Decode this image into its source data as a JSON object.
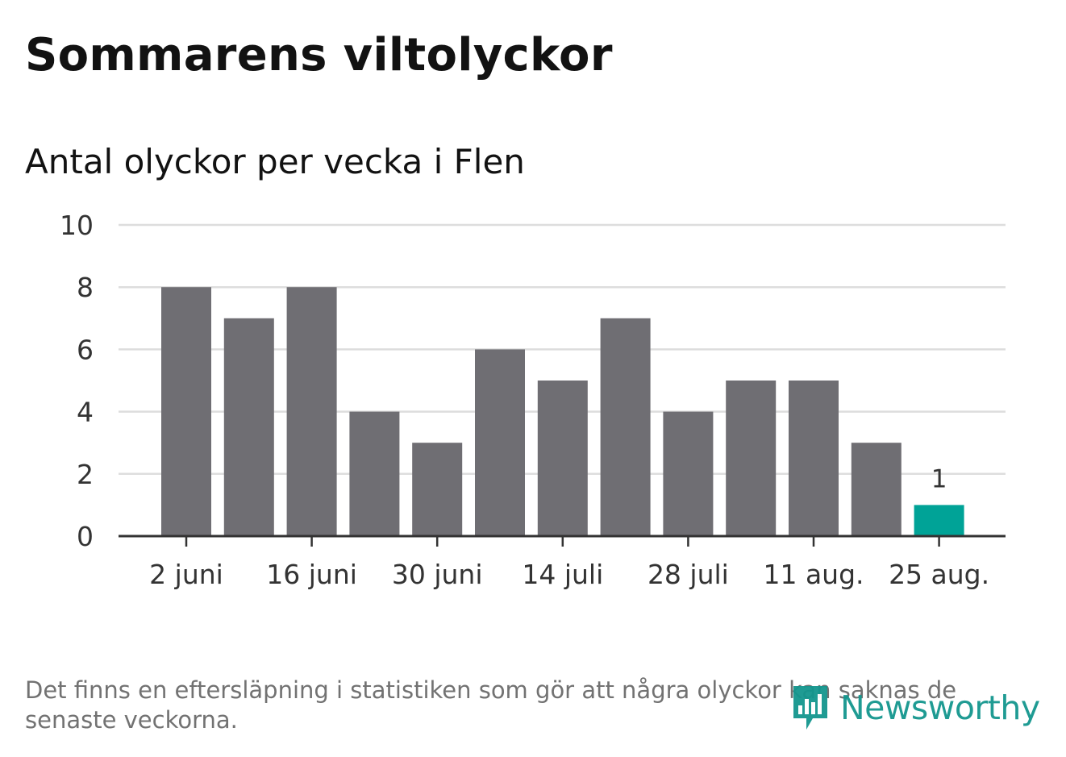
{
  "header": {
    "title": "Sommarens viltolyckor",
    "subtitle": "Antal olyckor per vecka i Flen"
  },
  "chart_data": {
    "type": "bar",
    "title": "Sommarens viltolyckor",
    "subtitle": "Antal olyckor per vecka i Flen",
    "categories": [
      "2 juni",
      "",
      "16 juni",
      "",
      "30 juni",
      "",
      "14 juli",
      "",
      "28 juli",
      "",
      "11 aug.",
      "",
      "25 aug."
    ],
    "tick_labels": [
      "2 juni",
      "16 juni",
      "30 juni",
      "14 juli",
      "28 juli",
      "11 aug.",
      "25 aug."
    ],
    "values": [
      8,
      7,
      8,
      4,
      3,
      6,
      5,
      7,
      4,
      5,
      5,
      3,
      1
    ],
    "highlight_index": 12,
    "highlight_label": "1",
    "ylim": [
      0,
      10
    ],
    "yticks": [
      "0",
      "2",
      "4",
      "6",
      "8",
      "10"
    ],
    "grid": true,
    "colors": {
      "bar": "#6f6e73",
      "highlight": "#00a397",
      "grid": "#dddddd",
      "axis": "#333333"
    }
  },
  "footer": {
    "note": "Det finns en eftersläpning i statistiken som gör att några olyckor kan saknas de senaste veckorna.",
    "brand": "Newsworthy",
    "brand_color": "#14968e",
    "brand_icon": "bar-chart-speech-bubble-icon"
  }
}
